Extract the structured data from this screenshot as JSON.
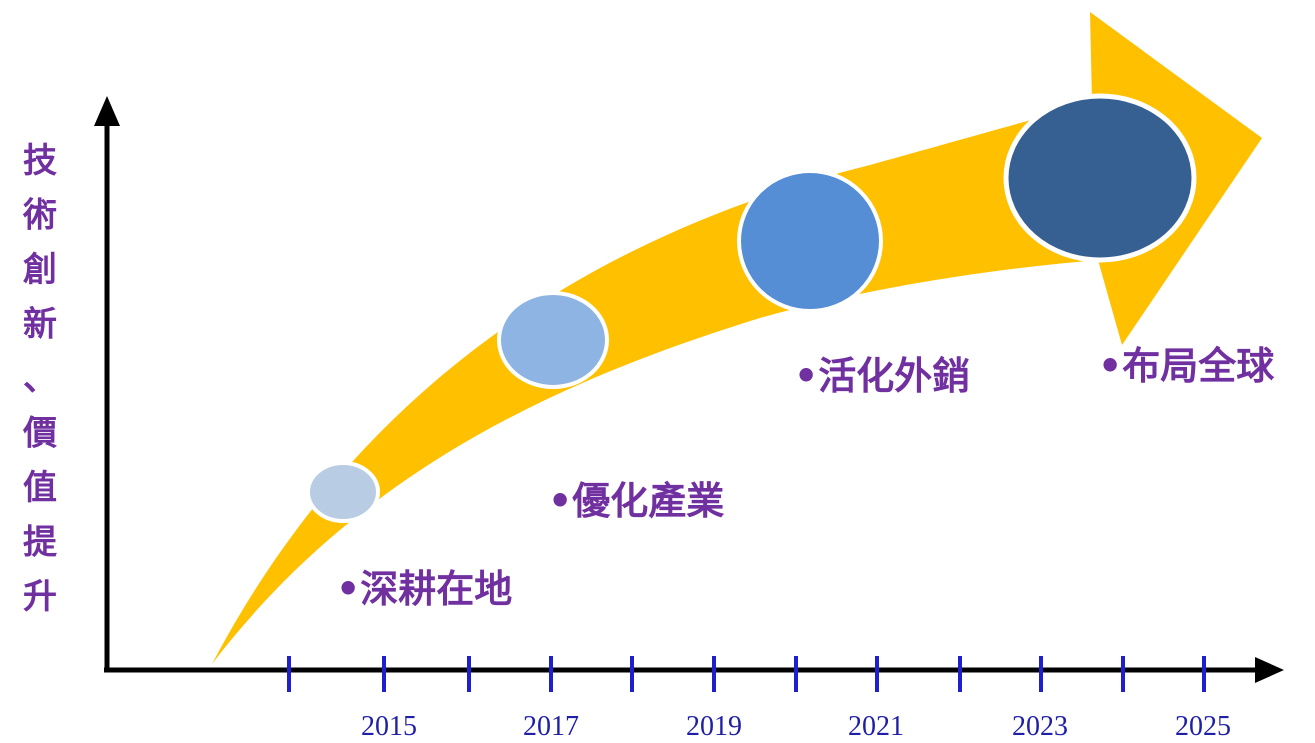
{
  "y_axis_label": "技術創新、價值提升",
  "years": [
    "2015",
    "2017",
    "2019",
    "2021",
    "2023",
    "2025"
  ],
  "stages": [
    {
      "label": "•深耕在地",
      "color": "#B8CCE4"
    },
    {
      "label": "•優化產業",
      "color": "#8EB4E3"
    },
    {
      "label": "•活化外銷",
      "color": "#558ED5"
    },
    {
      "label": "•布局全球",
      "color": "#376092"
    }
  ],
  "colors": {
    "arrow": "#FFC000",
    "axis": "#000000",
    "tick": "#1F1FD0",
    "label": "#7030A0",
    "year": "#1F1FA8"
  }
}
